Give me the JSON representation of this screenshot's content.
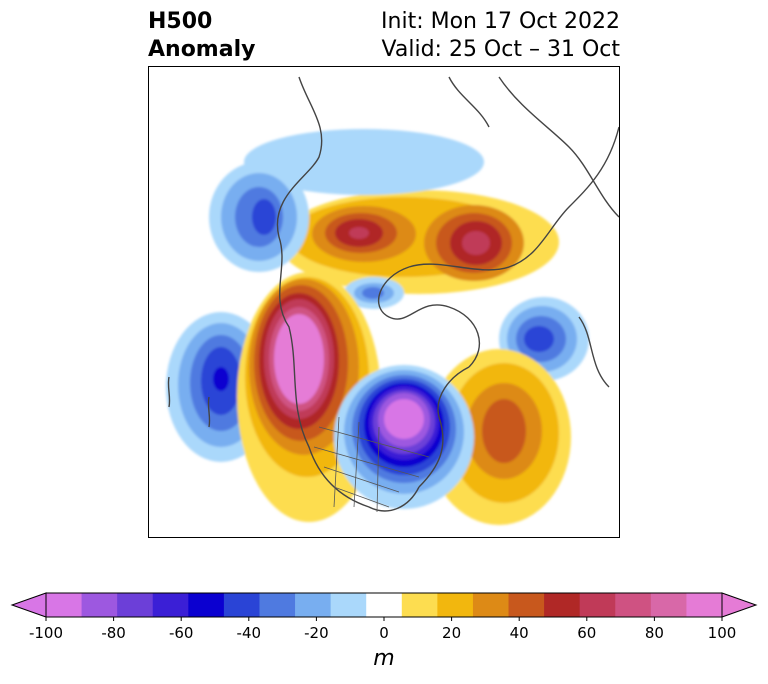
{
  "title": {
    "left_line1": "H500",
    "left_line2": "Anomaly",
    "right_line1": "Init: Mon 17 Oct 2022",
    "right_line2": "Valid: 25 Oct – 31 Oct"
  },
  "colorbar": {
    "unit": "m",
    "tick_labels": [
      "-100",
      "-80",
      "-60",
      "-40",
      "-20",
      "0",
      "20",
      "40",
      "60",
      "80",
      "100"
    ],
    "colors": [
      "#d876e6",
      "#9d58e0",
      "#6c3fd8",
      "#3b1fd6",
      "#0b00d0",
      "#2a44d6",
      "#4f7ae0",
      "#78aef0",
      "#aad8fb",
      "#ffffff",
      "#fddd50",
      "#f2b70e",
      "#dd8a16",
      "#c8581d",
      "#b02826",
      "#c03a58",
      "#cf5282",
      "#d868a8",
      "#e57bd6"
    ],
    "extend_min_color": "#d876e6",
    "extend_max_color": "#e57bd6"
  },
  "map": {
    "projection": "polar",
    "region": "Northern Hemisphere / North America"
  }
}
